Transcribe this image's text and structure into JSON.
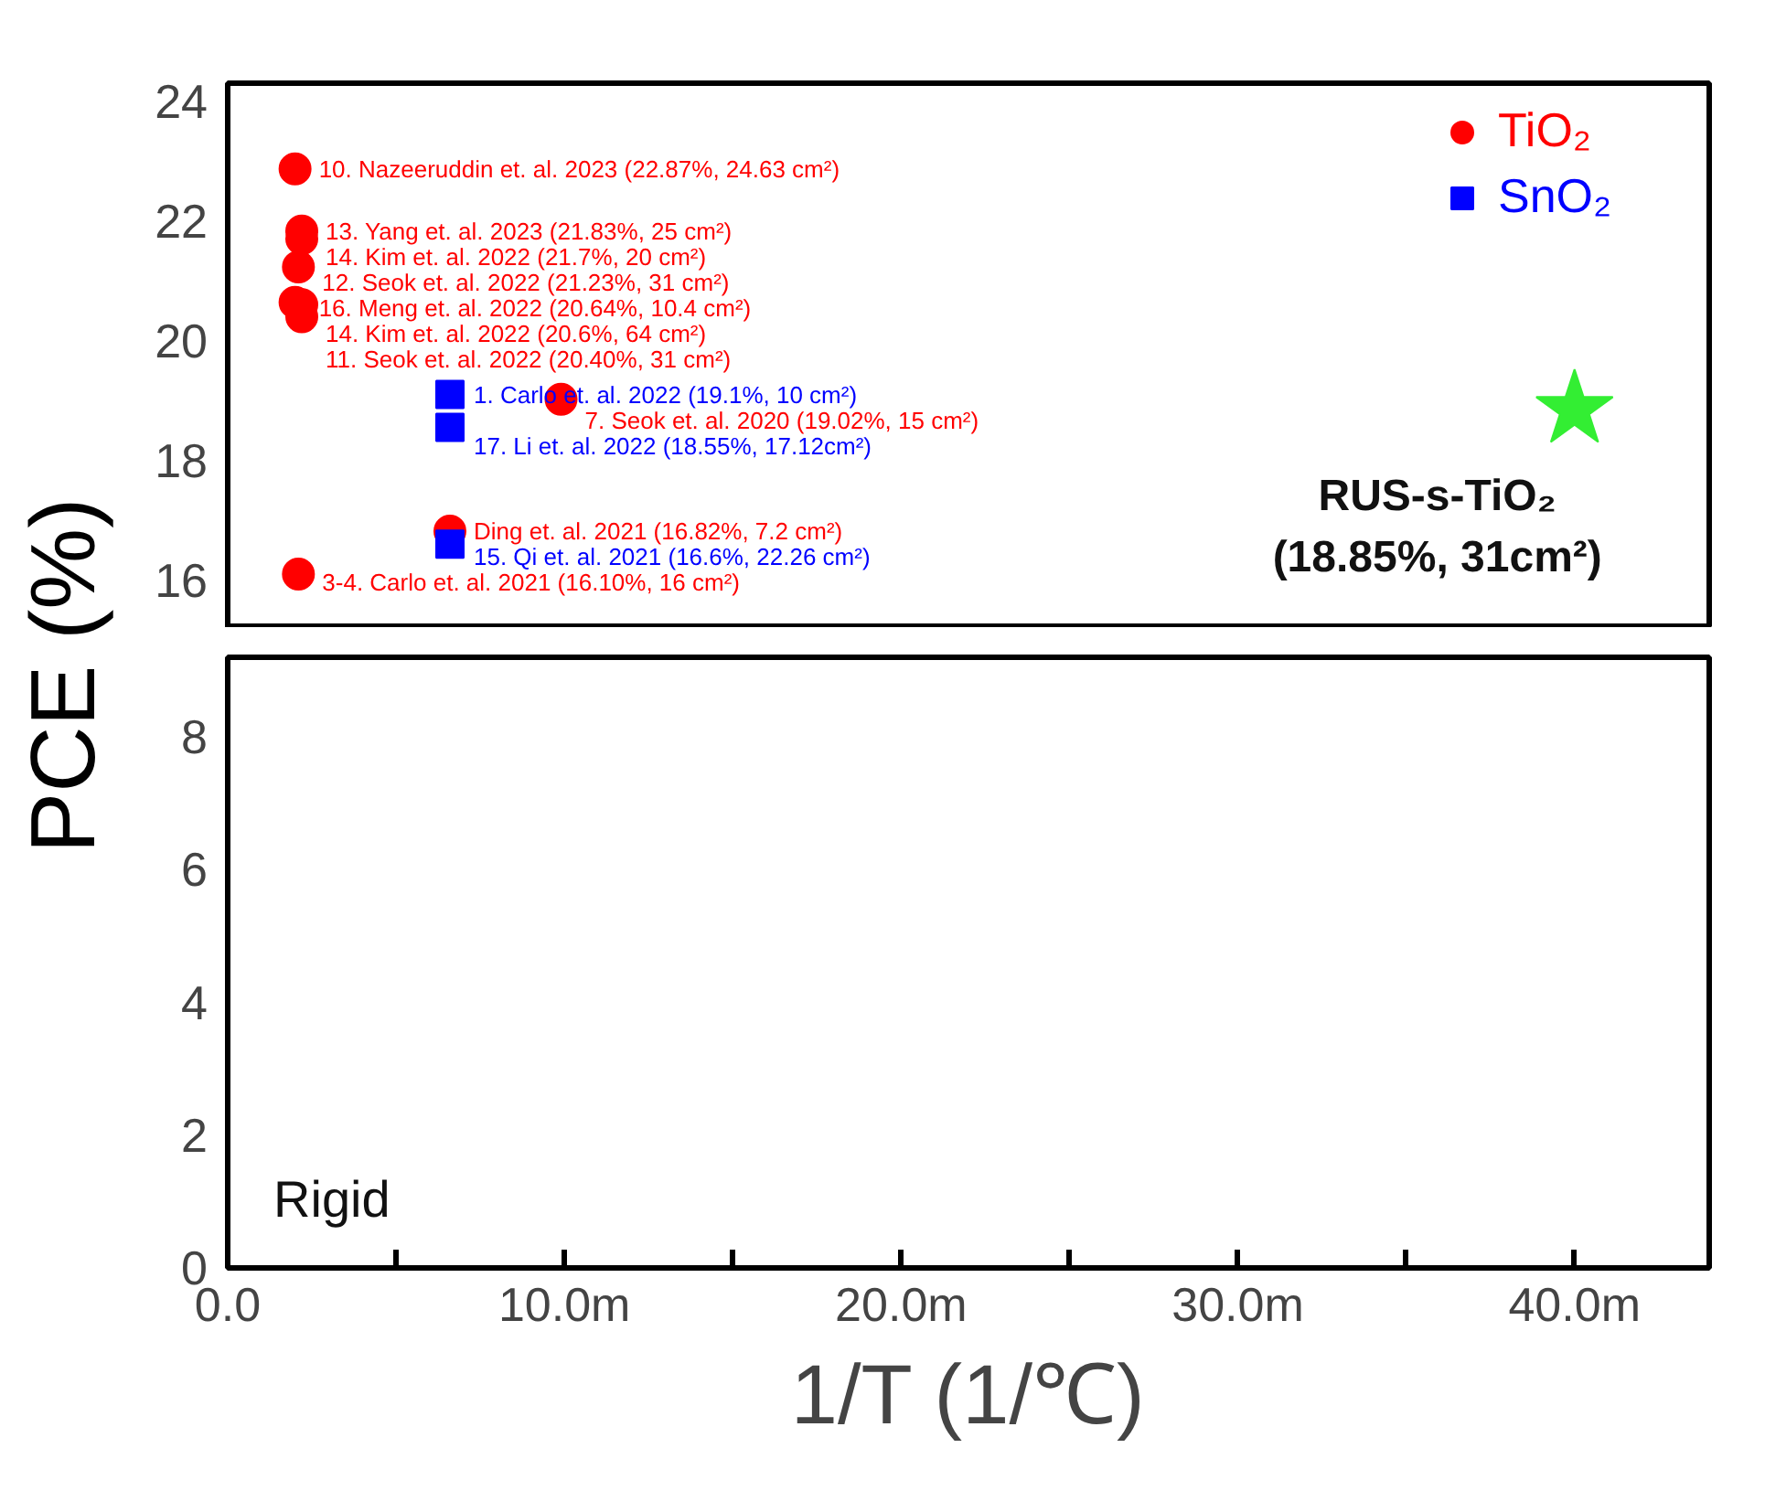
{
  "chart_data": [
    {
      "type": "scatter",
      "ylabel": "PCE (%)",
      "xlim": [
        0,
        44
      ],
      "ylim": [
        15.2,
        24.3
      ],
      "yticks": [
        16,
        18,
        20,
        22,
        24
      ],
      "tick_labels": "y",
      "legend": "top right",
      "series": [
        {
          "name": "TiO₂",
          "color": "#ff0000",
          "marker": "circle",
          "x": [
            2.0,
            2.2,
            2.2,
            2.1,
            2.0,
            2.2,
            2.2,
            9.9,
            6.6,
            2.1
          ],
          "values": [
            22.87,
            21.83,
            21.7,
            21.23,
            20.64,
            20.6,
            20.4,
            19.02,
            16.82,
            16.1
          ],
          "value_labels": [
            "10. Nazeeruddin et. al. 2023 (22.87%, 24.63 cm²)",
            "13. Yang et. al. 2023 (21.83%, 25 cm²)",
            "14. Kim et. al. 2022 (21.7%, 20 cm²)",
            "12. Seok et. al. 2022 (21.23%, 31 cm²)",
            "16. Meng et. al. 2022 (20.64%, 10.4 cm²)",
            "14. Kim et. al. 2022 (20.6%, 64 cm²)",
            "11. Seok et. al. 2022 (20.40%, 31 cm²)",
            "7. Seok et. al. 2020 (19.02%, 15 cm²)",
            "Ding et. al. 2021 (16.82%, 7.2 cm²)",
            "3-4. Carlo et. al. 2021 (16.10%, 16 cm²)"
          ]
        },
        {
          "name": "SnO₂",
          "color": "#0000ff",
          "marker": "square",
          "x": [
            6.6,
            6.6,
            6.6
          ],
          "values": [
            19.1,
            18.55,
            16.6
          ],
          "value_labels": [
            "1. Carlo et. al. 2022 (19.1%, 10 cm²)",
            "17. Li et. al. 2022 (18.55%, 17.12cm²)",
            "15. Qi et. al. 2021 (16.6%, 22.26 cm²)"
          ]
        },
        {
          "color": "#33ee33",
          "marker": "star",
          "x": [
            40
          ],
          "values": [
            18.85
          ]
        }
      ],
      "annotations": [
        {
          "text": "RUS-s-TiO₂\n(18.85%, 31cm²)",
          "x": 40,
          "y": 18.85
        }
      ]
    },
    {
      "type": "scatter",
      "xlabel": "1/T (1/℃)",
      "xlim": [
        0,
        44
      ],
      "xticks": [
        {
          "value": 0,
          "label": "0.0"
        },
        {
          "value": 5,
          "label": null
        },
        {
          "value": 10,
          "label": "10.0m"
        },
        {
          "value": 15,
          "label": null
        },
        {
          "value": 20,
          "label": "20.0m"
        },
        {
          "value": 25,
          "label": null
        },
        {
          "value": 30,
          "label": "30.0m"
        },
        {
          "value": 35,
          "label": null
        },
        {
          "value": 40,
          "label": "40.0m"
        }
      ],
      "ylim": [
        0,
        9.2
      ],
      "yticks": [
        0,
        2,
        4,
        6,
        8
      ],
      "annotations": [
        "Rigid"
      ]
    }
  ]
}
